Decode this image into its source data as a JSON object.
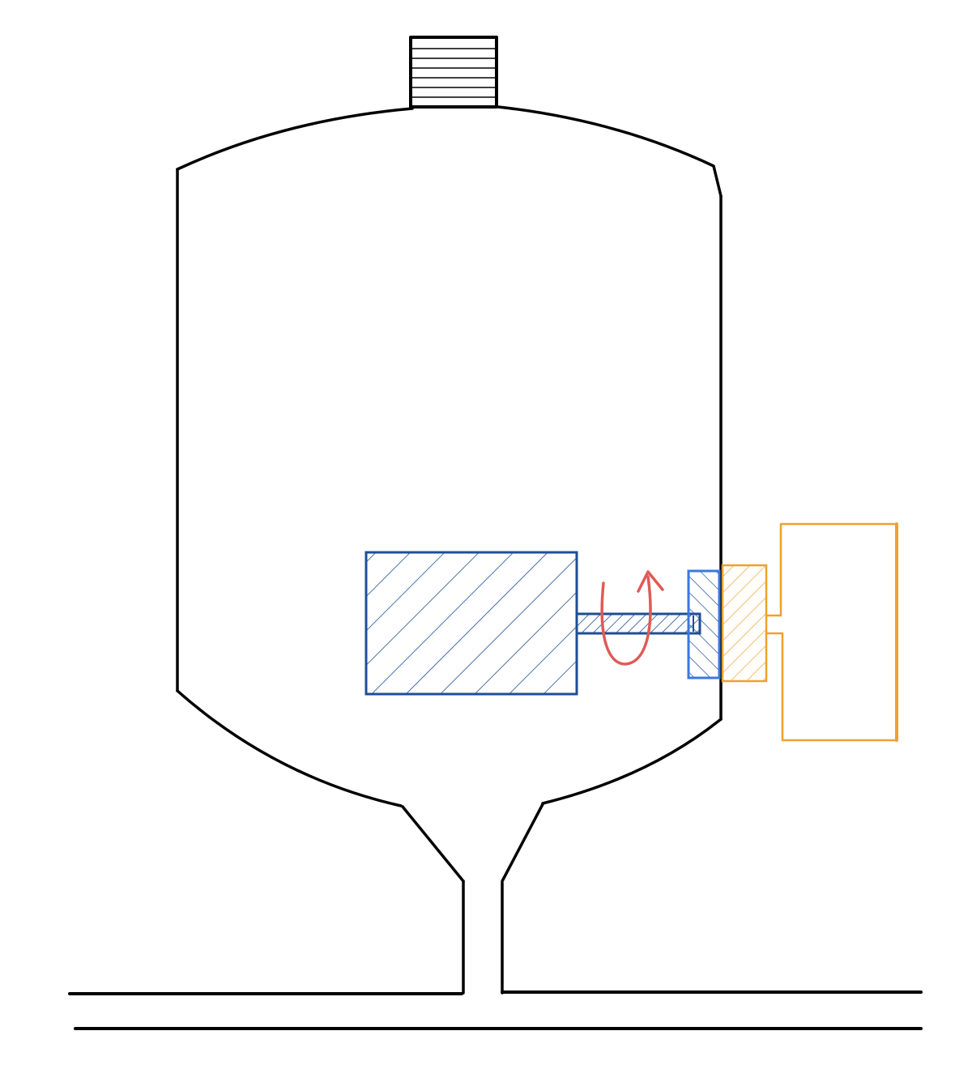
{
  "colors": {
    "background": "#ffffff",
    "vessel_outline": "#000000",
    "motor": "#1f4e96",
    "inner_magnet": "#3a78e0",
    "outer_magnet": "#f0a030",
    "rotation_arrow": "#e05a55"
  },
  "components": [
    "tank-vessel",
    "filler-neck",
    "outlet-funnel",
    "outlet-pipe",
    "horizontal-pipeline",
    "motor-block",
    "drive-shaft",
    "inner-magnet",
    "outer-magnet",
    "external-housing",
    "rotation-arrow-icon"
  ]
}
